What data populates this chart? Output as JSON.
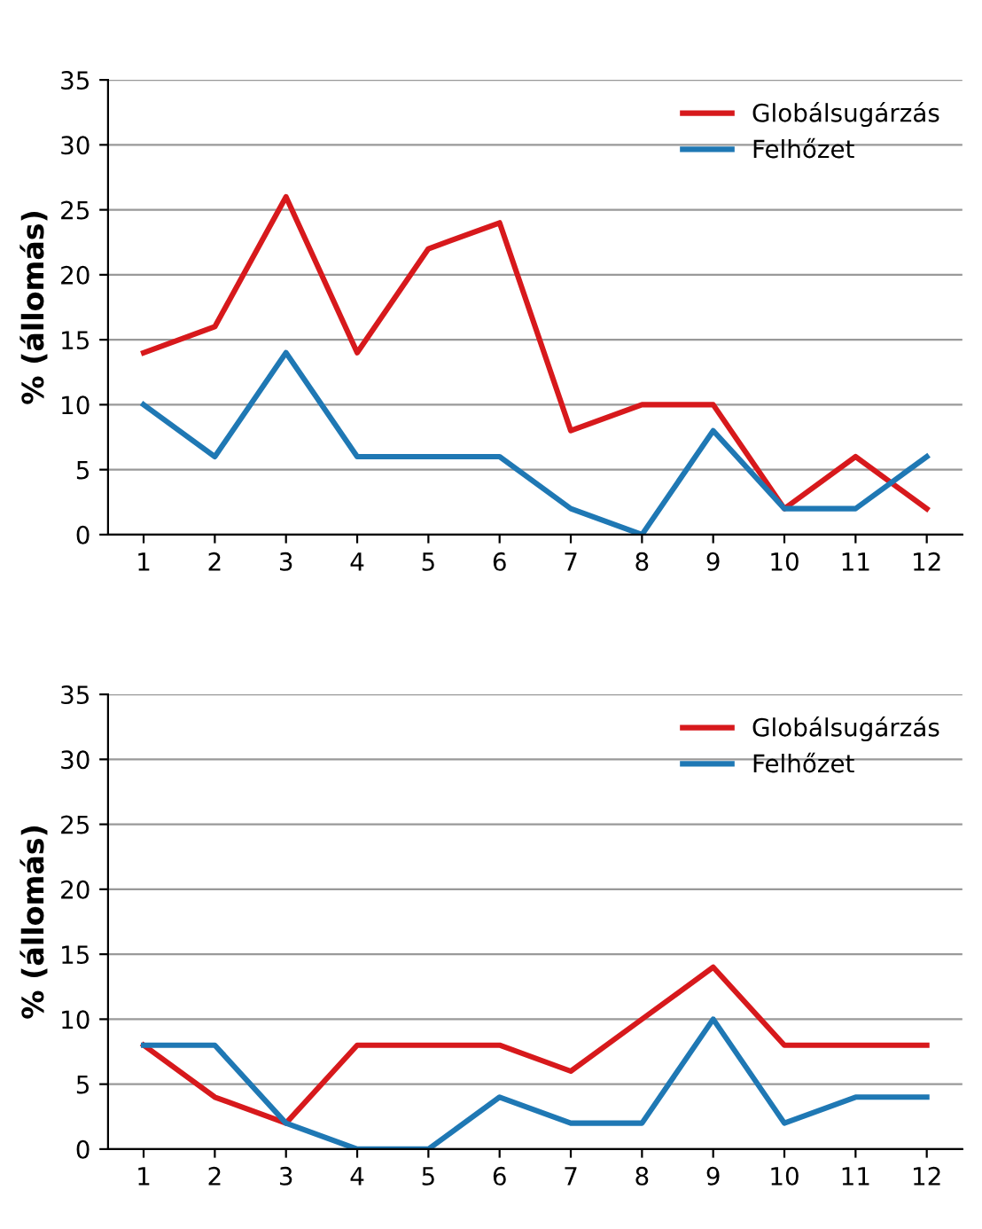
{
  "chart_data": [
    {
      "type": "line",
      "ylabel": "% (állomás)",
      "categories": [
        "1",
        "2",
        "3",
        "4",
        "5",
        "6",
        "7",
        "8",
        "9",
        "10",
        "11",
        "12"
      ],
      "series": [
        {
          "name": "Globálsugárzás",
          "color": "#d7191c",
          "values": [
            14,
            16,
            26,
            14,
            22,
            24,
            8,
            10,
            10,
            2,
            6,
            2
          ]
        },
        {
          "name": "Felhőzet",
          "color": "#1f78b4",
          "values": [
            10,
            6,
            14,
            6,
            6,
            6,
            2,
            0,
            8,
            2,
            2,
            6
          ]
        }
      ],
      "ylim": [
        0,
        35
      ],
      "yticks": [
        0,
        5,
        10,
        15,
        20,
        25,
        30,
        35
      ],
      "grid": "y",
      "legend": "top right",
      "marker": "none",
      "line_style": "solid"
    },
    {
      "type": "line",
      "ylabel": "% (állomás)",
      "categories": [
        "1",
        "2",
        "3",
        "4",
        "5",
        "6",
        "7",
        "8",
        "9",
        "10",
        "11",
        "12"
      ],
      "series": [
        {
          "name": "Globálsugárzás",
          "color": "#d7191c",
          "values": [
            8,
            4,
            2,
            8,
            8,
            8,
            6,
            10,
            14,
            8,
            8,
            8
          ]
        },
        {
          "name": "Felhőzet",
          "color": "#1f78b4",
          "values": [
            8,
            8,
            2,
            0,
            0,
            4,
            2,
            2,
            10,
            2,
            4,
            4
          ]
        }
      ],
      "ylim": [
        0,
        35
      ],
      "yticks": [
        0,
        5,
        10,
        15,
        20,
        25,
        30,
        35
      ],
      "grid": "y",
      "legend": "top right",
      "marker": "none",
      "line_style": "solid"
    }
  ]
}
